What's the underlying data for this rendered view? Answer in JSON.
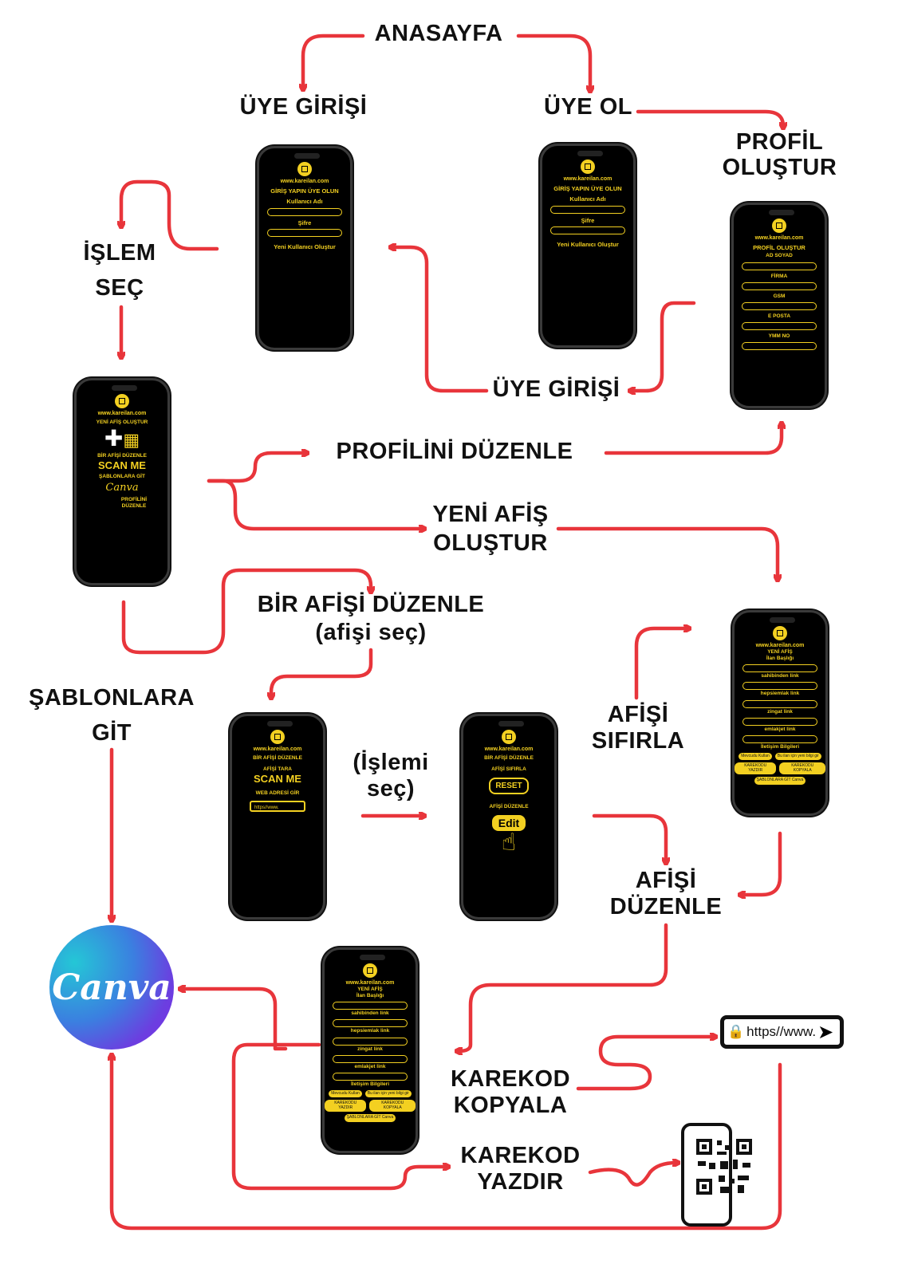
{
  "labels": {
    "anasayfa": "ANASAYFA",
    "uye_girisi_top": "ÜYE GİRİŞİ",
    "uye_ol": "ÜYE OL",
    "profil_olustur": "PROFİL OLUŞTUR",
    "islem_sec": "İŞLEM SEÇ",
    "uye_girisi_mid": "ÜYE GİRİŞİ",
    "profilini_duzenle": "PROFİLİNİ DÜZENLE",
    "yeni_afis_olustur": "YENİ AFİŞ OLUŞTUR",
    "bir_afisi_duzenle": "BİR AFİŞİ DÜZENLE",
    "afisi_sec": "(afişi seç)",
    "sablonlara_git": "ŞABLONLARA GİT",
    "islemi_sec": "(İşlemi seç)",
    "afisi_sifirla": "AFİŞİ SIFIRLA",
    "afisi_duzenle": "AFİŞİ DÜZENLE",
    "karekod_kopyala": "KAREKOD KOPYALA",
    "karekod_yazdir": "KAREKOD YAZDIR"
  },
  "phones": {
    "site": "www.kareilan.com",
    "login": {
      "title": "GİRİŞ YAPIN ÜYE OLUN",
      "user": "Kullanıcı Adı",
      "pass": "Şifre",
      "new": "Yeni Kullanıcı Oluştur"
    },
    "profile": {
      "title": "PROFİL OLUŞTUR",
      "f1": "AD SOYAD",
      "f2": "FİRMA",
      "f3": "GSM",
      "f4": "E POSTA",
      "f5": "YMM NO"
    },
    "menu": {
      "t1": "YENİ AFİŞ OLUŞTUR",
      "t2": "BİR AFİŞİ DÜZENLE",
      "scan": "SCAN ME",
      "t3": "ŞABLONLARA GİT",
      "canva": "Canva",
      "t4": "PROFİLİNİ DÜZENLE"
    },
    "edit1": {
      "title": "BİR AFİŞİ DÜZENLE",
      "scan_title": "AFİŞİ TARA",
      "scan": "SCAN ME",
      "web": "WEB ADRESİ GİR",
      "url": "https//www."
    },
    "edit2": {
      "title": "BİR AFİŞİ DÜZENLE",
      "reset_title": "AFİŞİ SIFIRLA",
      "reset": "RESET",
      "edit_title": "AFİŞİ DÜZENLE",
      "edit": "Edit"
    },
    "newad": {
      "title": "YENİ AFİŞ",
      "sub": "İlan Başlığı",
      "l1": "sahibinden link",
      "l2": "hepsiemlak link",
      "l3": "zingat link",
      "l4": "emlakjet link",
      "info": "İletişim Bilgileri",
      "b1": "Mevcudu Kullan",
      "b2": "Bu ilan için yeni bilgi gir",
      "b3": "KAREKODU YAZDIR",
      "b4": "KAREKODU KOPYALA",
      "tpl": "ŞABLONLARA GİT",
      "canva": "Canva"
    }
  },
  "canva_logo": "Canva",
  "url_bar": "https//www.",
  "colors": {
    "arrow": "#e8353b",
    "accent": "#f3d021",
    "screen": "#000000"
  }
}
